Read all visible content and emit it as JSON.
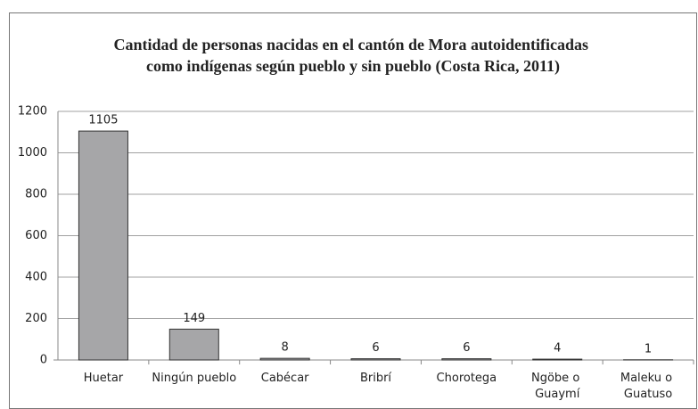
{
  "chart_data": {
    "type": "bar",
    "title": "Cantidad de personas nacidas en el cantón de Mora autoidentificadas como indígenas según pueblo y sin pueblo (Costa Rica, 2011)",
    "categories": [
      "Huetar",
      "Ningún pueblo",
      "Cabécar",
      "Bribrí",
      "Chorotega",
      "Ngöbe o Guaymí",
      "Maleku o Guatuso"
    ],
    "values": [
      1105,
      149,
      8,
      6,
      6,
      4,
      1
    ],
    "color": "#a6a6a8",
    "ylim": [
      0,
      1200
    ],
    "yticks": [
      0,
      200,
      400,
      600,
      800,
      1000,
      1200
    ],
    "grid": true
  }
}
